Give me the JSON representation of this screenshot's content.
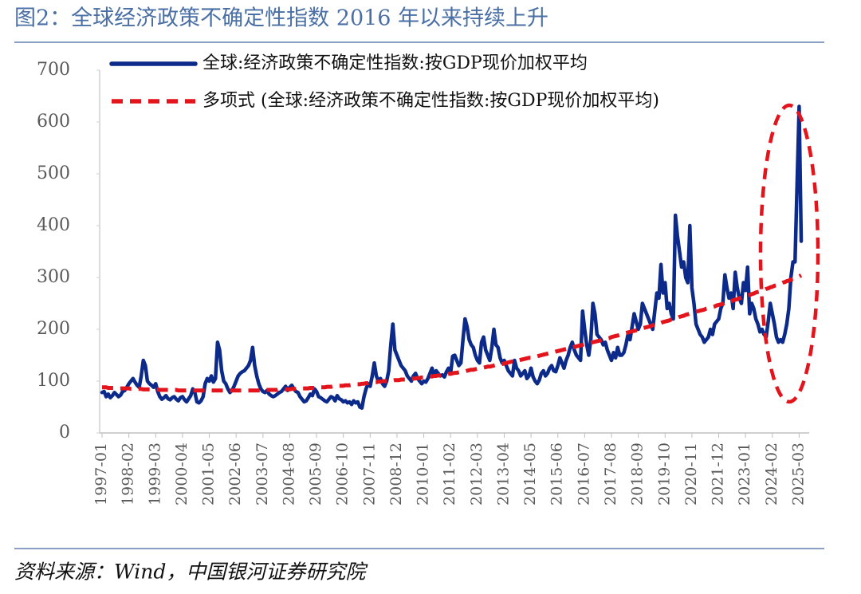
{
  "chart_data": {
    "type": "line",
    "title": "图2：全球经济政策不确定性指数 2016 年以来持续上升",
    "source": "资料来源：Wind，中国银河证券研究院",
    "ylim": [
      0,
      700
    ],
    "yticks": [
      0,
      100,
      200,
      300,
      400,
      500,
      600,
      700
    ],
    "categories": [
      "1997-01",
      null,
      null,
      null,
      null,
      null,
      null,
      null,
      null,
      null,
      null,
      null,
      null,
      "1998-02",
      null,
      null,
      null,
      null,
      null,
      null,
      null,
      null,
      null,
      null,
      null,
      null,
      "1999-03",
      null,
      null,
      null,
      null,
      null,
      null,
      null,
      null,
      null,
      null,
      null,
      null,
      "2000-04",
      null,
      null,
      null,
      null,
      null,
      null,
      null,
      null,
      null,
      null,
      null,
      null,
      "2001-05",
      null,
      null,
      null,
      null,
      null,
      null,
      null,
      null,
      null,
      null,
      null,
      null,
      "2002-06",
      null,
      null,
      null,
      null,
      null,
      null,
      null,
      null,
      null,
      null,
      null,
      null,
      "2003-07",
      null,
      null,
      null,
      null,
      null,
      null,
      null,
      null,
      null,
      null,
      null,
      null,
      "2004-08",
      null,
      null,
      null,
      null,
      null,
      null,
      null,
      null,
      null,
      null,
      null,
      null,
      "2005-09",
      null,
      null,
      null,
      null,
      null,
      null,
      null,
      null,
      null,
      null,
      null,
      null,
      "2006-10",
      null,
      null,
      null,
      null,
      null,
      null,
      null,
      null,
      null,
      null,
      null,
      null,
      "2007-11",
      null,
      null,
      null,
      null,
      null,
      null,
      null,
      null,
      null,
      null,
      null,
      null,
      "2008-12",
      null,
      null,
      null,
      null,
      null,
      null,
      null,
      null,
      null,
      null,
      null,
      null,
      "2010-01",
      null,
      null,
      null,
      null,
      null,
      null,
      null,
      null,
      null,
      null,
      null,
      null,
      "2011-02",
      null,
      null,
      null,
      null,
      null,
      null,
      null,
      null,
      null,
      null,
      null,
      null,
      "2012-03",
      null,
      null,
      null,
      null,
      null,
      null,
      null,
      null,
      null,
      null,
      null,
      null,
      "2013-04",
      null,
      null,
      null,
      null,
      null,
      null,
      null,
      null,
      null,
      null,
      null,
      null,
      "2014-05",
      null,
      null,
      null,
      null,
      null,
      null,
      null,
      null,
      null,
      null,
      null,
      null,
      "2015-06",
      null,
      null,
      null,
      null,
      null,
      null,
      null,
      null,
      null,
      null,
      null,
      null,
      "2016-07",
      null,
      null,
      null,
      null,
      null,
      null,
      null,
      null,
      null,
      null,
      null,
      null,
      "2017-08",
      null,
      null,
      null,
      null,
      null,
      null,
      null,
      null,
      null,
      null,
      null,
      null,
      "2018-09",
      null,
      null,
      null,
      null,
      null,
      null,
      null,
      null,
      null,
      null,
      null,
      null,
      "2019-10",
      null,
      null,
      null,
      null,
      null,
      null,
      null,
      null,
      null,
      null,
      null,
      null,
      "2020-11",
      null,
      null,
      null,
      null,
      null,
      null,
      null,
      null,
      null,
      null,
      null,
      null,
      "2021-12",
      null,
      null,
      null,
      null,
      null,
      null,
      null,
      null,
      null,
      null,
      null,
      null,
      "2023-01",
      null,
      null,
      null,
      null,
      null,
      null,
      null,
      null,
      null,
      null,
      null,
      null,
      "2024-02",
      null,
      null,
      null,
      null,
      null,
      null,
      null,
      null,
      null,
      null,
      null,
      null,
      "2025-03",
      null
    ],
    "series": [
      {
        "name": "全球:经济政策不确定性指数:按GDP现价加权平均",
        "color": "#0b2a8a",
        "style": "solid",
        "values": [
          78,
          80,
          70,
          75,
          68,
          72,
          78,
          74,
          70,
          73,
          80,
          82,
          88,
          95,
          100,
          105,
          98,
          92,
          88,
          110,
          140,
          130,
          100,
          95,
          92,
          88,
          95,
          80,
          70,
          65,
          68,
          72,
          66,
          64,
          68,
          70,
          65,
          62,
          68,
          70,
          64,
          60,
          66,
          72,
          85,
          78,
          60,
          58,
          62,
          70,
          95,
          105,
          100,
          110,
          98,
          105,
          175,
          160,
          120,
          100,
          95,
          85,
          78,
          82,
          90,
          100,
          110,
          115,
          118,
          120,
          125,
          130,
          140,
          165,
          130,
          110,
          95,
          85,
          80,
          78,
          82,
          75,
          72,
          70,
          72,
          75,
          78,
          80,
          85,
          90,
          82,
          88,
          92,
          85,
          80,
          78,
          70,
          65,
          60,
          62,
          68,
          75,
          72,
          85,
          80,
          70,
          68,
          65,
          62,
          60,
          65,
          70,
          68,
          62,
          72,
          66,
          64,
          60,
          62,
          58,
          60,
          55,
          62,
          58,
          60,
          50,
          48,
          70,
          85,
          95,
          90,
          110,
          135,
          110,
          100,
          105,
          95,
          90,
          100,
          120,
          170,
          210,
          160,
          150,
          140,
          130,
          125,
          120,
          110,
          105,
          100,
          110,
          115,
          105,
          100,
          95,
          100,
          98,
          105,
          115,
          125,
          110,
          120,
          115,
          110,
          112,
          108,
          118,
          125,
          115,
          148,
          150,
          140,
          130,
          135,
          180,
          220,
          205,
          180,
          170,
          165,
          150,
          140,
          135,
          175,
          185,
          160,
          150,
          140,
          165,
          200,
          170,
          165,
          145,
          135,
          140,
          130,
          120,
          115,
          110,
          140,
          125,
          120,
          110,
          115,
          120,
          105,
          110,
          125,
          108,
          100,
          95,
          102,
          115,
          120,
          110,
          115,
          125,
          130,
          120,
          118,
          130,
          145,
          135,
          125,
          140,
          150,
          165,
          175,
          160,
          150,
          145,
          140,
          235,
          200,
          170,
          150,
          180,
          250,
          230,
          190,
          185,
          180,
          170,
          175,
          160,
          150,
          140,
          155,
          145,
          165,
          150,
          150,
          155,
          170,
          190,
          180,
          205,
          230,
          215,
          200,
          210,
          250,
          240,
          230,
          220,
          210,
          200,
          235,
          270,
          260,
          325,
          270,
          290,
          240,
          250,
          230,
          220,
          420,
          380,
          350,
          320,
          330,
          300,
          290,
          400,
          280,
          250,
          210,
          200,
          190,
          185,
          175,
          180,
          185,
          200,
          190,
          210,
          215,
          220,
          240,
          250,
          305,
          280,
          260,
          270,
          240,
          310,
          280,
          260,
          250,
          290,
          275,
          320,
          230,
          250,
          240,
          220,
          210,
          195,
          200,
          190,
          185,
          215,
          250,
          230,
          210,
          185,
          175,
          180,
          175,
          190,
          210,
          240,
          300,
          330,
          330,
          480,
          630,
          370
        ]
      },
      {
        "name": "多项式 (全球:经济政策不确定性指数:按GDP现价加权平均)",
        "color": "#e3141b",
        "style": "dashed",
        "values": [
          88,
          88,
          88,
          87,
          87,
          87,
          87,
          86,
          86,
          86,
          86,
          86,
          86,
          86,
          85,
          85,
          85,
          85,
          85,
          85,
          84,
          84,
          84,
          84,
          84,
          84,
          84,
          84,
          83,
          83,
          83,
          83,
          83,
          83,
          83,
          83,
          83,
          82,
          82,
          82,
          82,
          82,
          82,
          82,
          82,
          82,
          82,
          82,
          82,
          82,
          82,
          82,
          82,
          82,
          82,
          82,
          82,
          82,
          82,
          82,
          82,
          82,
          82,
          82,
          82,
          82,
          82,
          82,
          82,
          82,
          82,
          82,
          82,
          82,
          82,
          82,
          82,
          83,
          83,
          83,
          83,
          83,
          83,
          83,
          83,
          83,
          84,
          84,
          84,
          84,
          84,
          84,
          85,
          85,
          85,
          85,
          85,
          86,
          86,
          86,
          86,
          87,
          87,
          87,
          87,
          88,
          88,
          88,
          88,
          89,
          89,
          89,
          90,
          90,
          90,
          91,
          91,
          91,
          92,
          92,
          92,
          93,
          93,
          94,
          94,
          94,
          95,
          95,
          96,
          96,
          97,
          97,
          98,
          98,
          99,
          99,
          100,
          100,
          100,
          101,
          101,
          101,
          102,
          102,
          102,
          103,
          103,
          103,
          104,
          104,
          105,
          105,
          105,
          106,
          106,
          107,
          107,
          108,
          108,
          109,
          109,
          110,
          110,
          111,
          111,
          112,
          112,
          113,
          114,
          114,
          115,
          116,
          116,
          117,
          118,
          119,
          119,
          120,
          121,
          122,
          122,
          123,
          124,
          125,
          125,
          126,
          127,
          128,
          128,
          129,
          130,
          131,
          132,
          132,
          133,
          134,
          135,
          136,
          137,
          138,
          138,
          139,
          140,
          141,
          142,
          143,
          144,
          145,
          145,
          146,
          147,
          148,
          149,
          150,
          151,
          152,
          153,
          154,
          155,
          156,
          157,
          158,
          159,
          160,
          161,
          162,
          163,
          164,
          165,
          166,
          167,
          168,
          169,
          170,
          171,
          172,
          173,
          174,
          175,
          176,
          177,
          178,
          179,
          180,
          181,
          182,
          183,
          185,
          186,
          187,
          188,
          189,
          190,
          191,
          193,
          194,
          195,
          196,
          197,
          198,
          199,
          201,
          202,
          203,
          204,
          205,
          206,
          208,
          209,
          210,
          211,
          212,
          214,
          215,
          216,
          217,
          219,
          220,
          221,
          222,
          224,
          225,
          226,
          228,
          229,
          230,
          231,
          233,
          234,
          235,
          236,
          237,
          238,
          240,
          241,
          242,
          243,
          244,
          246,
          247,
          248,
          249,
          251,
          252,
          253,
          254,
          256,
          257,
          258,
          260,
          261,
          262,
          264,
          265,
          266,
          268,
          269,
          271,
          272,
          273,
          275,
          276,
          278,
          279,
          281,
          282,
          284,
          285,
          287,
          288,
          290,
          291,
          293,
          294,
          296,
          297,
          299,
          301,
          302,
          304
        ]
      }
    ]
  }
}
